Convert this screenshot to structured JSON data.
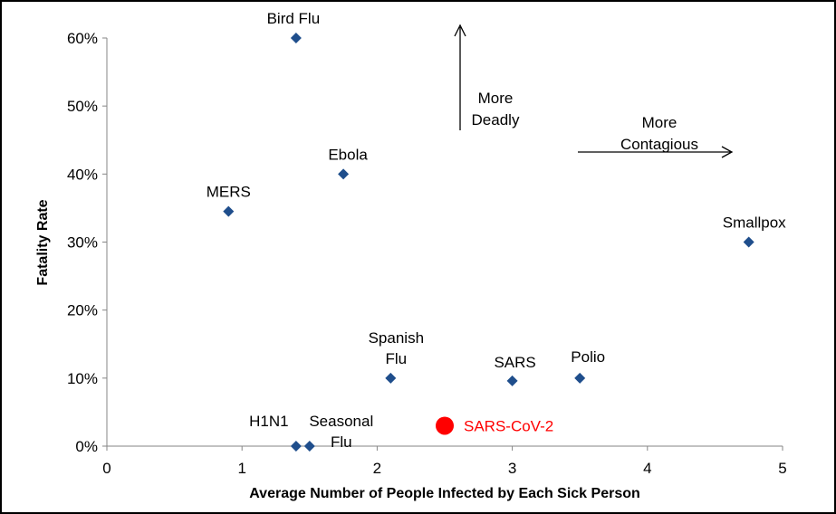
{
  "chart_data": {
    "type": "scatter",
    "title": "",
    "xlabel": "Average Number of People Infected by Each Sick Person",
    "ylabel": "Fatality Rate",
    "xlim": [
      0,
      5
    ],
    "ylim": [
      0,
      0.6
    ],
    "x_ticks": [
      0,
      1,
      2,
      3,
      4,
      5
    ],
    "x_tick_labels": [
      "0",
      "1",
      "2",
      "3",
      "4",
      "5"
    ],
    "y_ticks": [
      0,
      0.1,
      0.2,
      0.3,
      0.4,
      0.5,
      0.6
    ],
    "y_tick_labels": [
      "0%",
      "10%",
      "20%",
      "30%",
      "40%",
      "50%",
      "60%"
    ],
    "grid": false,
    "legend": "none",
    "marker_color": "#1F4E8C",
    "highlight_color": "#FF0000",
    "points": [
      {
        "name": "Bird Flu",
        "label_lines": [
          "Bird Flu"
        ],
        "x": 1.4,
        "y": 0.6
      },
      {
        "name": "Ebola",
        "label_lines": [
          "Ebola"
        ],
        "x": 1.75,
        "y": 0.4
      },
      {
        "name": "MERS",
        "label_lines": [
          "MERS"
        ],
        "x": 0.9,
        "y": 0.345
      },
      {
        "name": "Smallpox",
        "label_lines": [
          "Smallpox"
        ],
        "x": 4.75,
        "y": 0.3
      },
      {
        "name": "Spanish Flu",
        "label_lines": [
          "Spanish",
          "Flu"
        ],
        "x": 2.1,
        "y": 0.1
      },
      {
        "name": "SARS",
        "label_lines": [
          "SARS"
        ],
        "x": 3.0,
        "y": 0.096
      },
      {
        "name": "Polio",
        "label_lines": [
          "Polio"
        ],
        "x": 3.5,
        "y": 0.1
      },
      {
        "name": "H1N1",
        "label_lines": [
          "H1N1"
        ],
        "x": 1.4,
        "y": 0.0
      },
      {
        "name": "Seasonal Flu",
        "label_lines": [
          "Seasonal",
          "Flu"
        ],
        "x": 1.5,
        "y": 0.0
      }
    ],
    "highlight_point": {
      "name": "SARS-CoV-2",
      "x": 2.5,
      "y": 0.03
    },
    "annotations": [
      {
        "label_lines": [
          "More",
          "Deadly"
        ],
        "arrow": "up"
      },
      {
        "label_lines": [
          "More",
          "Contagious"
        ],
        "arrow": "right"
      }
    ]
  }
}
